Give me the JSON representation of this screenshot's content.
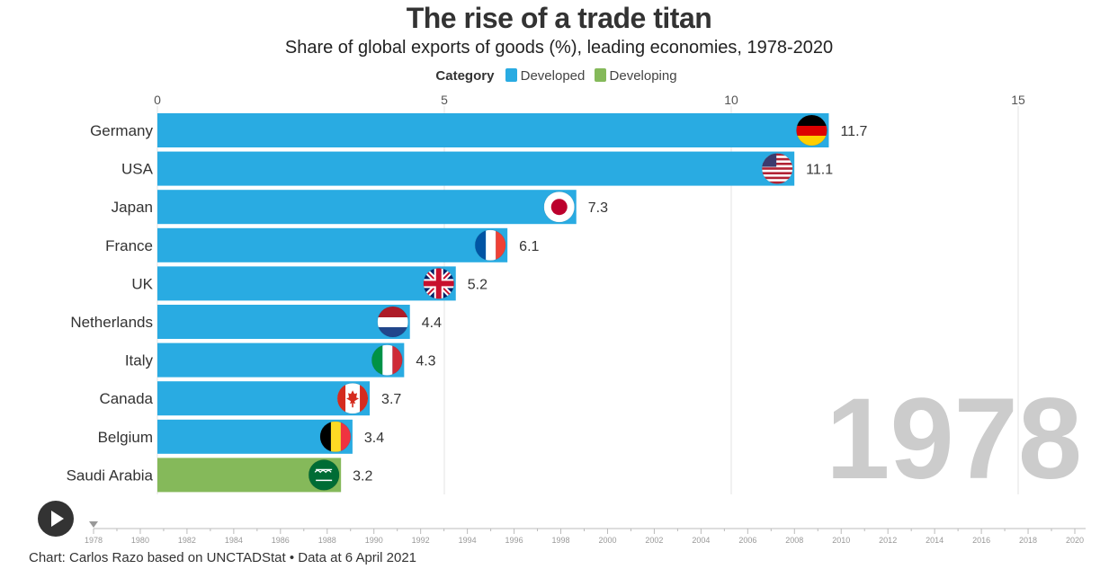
{
  "title": "The rise of a trade titan",
  "subtitle": "Share of global exports of goods (%), leading economies, 1978-2020",
  "legend": {
    "title": "Category",
    "items": [
      {
        "label": "Developed",
        "color": "#29abe2"
      },
      {
        "label": "Developing",
        "color": "#85b95a"
      }
    ]
  },
  "year_label": "1978",
  "footer": "Chart: Carlos Razo based on UNCTADStat • Data at 6 April 2021",
  "timeline": {
    "ticks": [
      "1978",
      "1980",
      "1982",
      "1984",
      "1986",
      "1988",
      "1990",
      "1992",
      "1994",
      "1996",
      "1998",
      "2000",
      "2002",
      "2004",
      "2006",
      "2008",
      "2010",
      "2012",
      "2014",
      "2016",
      "2018",
      "2020"
    ],
    "current": "1978"
  },
  "chart_data": {
    "type": "bar",
    "orientation": "horizontal",
    "xlim": [
      0,
      15
    ],
    "x_ticks": [
      0,
      5,
      10,
      15
    ],
    "grid": true,
    "legend_position": "top-center",
    "bars": [
      {
        "name": "Germany",
        "value": 11.7,
        "label": "11.7",
        "category": "Developed",
        "flag": "germany"
      },
      {
        "name": "USA",
        "value": 11.1,
        "label": "11.1",
        "category": "Developed",
        "flag": "usa"
      },
      {
        "name": "Japan",
        "value": 7.3,
        "label": "7.3",
        "category": "Developed",
        "flag": "japan"
      },
      {
        "name": "France",
        "value": 6.1,
        "label": "6.1",
        "category": "Developed",
        "flag": "france"
      },
      {
        "name": "UK",
        "value": 5.2,
        "label": "5.2",
        "category": "Developed",
        "flag": "uk"
      },
      {
        "name": "Netherlands",
        "value": 4.4,
        "label": "4.4",
        "category": "Developed",
        "flag": "netherlands"
      },
      {
        "name": "Italy",
        "value": 4.3,
        "label": "4.3",
        "category": "Developed",
        "flag": "italy"
      },
      {
        "name": "Canada",
        "value": 3.7,
        "label": "3.7",
        "category": "Developed",
        "flag": "canada"
      },
      {
        "name": "Belgium",
        "value": 3.4,
        "label": "3.4",
        "category": "Developed",
        "flag": "belgium"
      },
      {
        "name": "Saudi Arabia",
        "value": 3.2,
        "label": "3.2",
        "category": "Developing",
        "flag": "saudi-arabia"
      }
    ]
  }
}
